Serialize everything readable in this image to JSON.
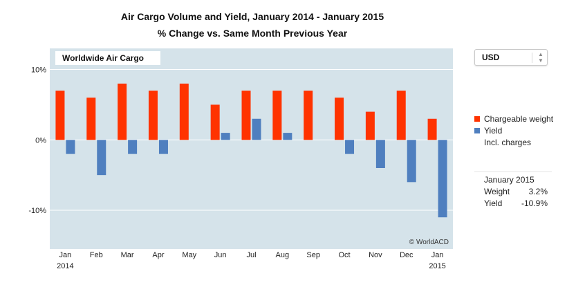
{
  "title": "Air Cargo Volume and Yield, January 2014 - January 2015",
  "subtitle": "%  Change vs. Same Month Previous Year",
  "currency_select": {
    "value": "USD"
  },
  "legend": {
    "items": [
      {
        "label": "Chargeable weight",
        "color": "#ff3300"
      },
      {
        "label": "Yield",
        "color": "#4f7fbf"
      }
    ],
    "note": "Incl. charges"
  },
  "info_box": {
    "period": "January 2015",
    "rows": [
      {
        "label": "Weight",
        "value": "3.2%"
      },
      {
        "label": "Yield",
        "value": "-10.9%"
      }
    ]
  },
  "chart_data": {
    "type": "bar",
    "title": "Air Cargo Volume and Yield, January 2014 - January 2015",
    "subtitle": "%  Change vs. Same Month Previous Year",
    "panel_label": "Worldwide Air Cargo",
    "credit": "© WorldACD",
    "categories": [
      "Jan",
      "Feb",
      "Mar",
      "Apr",
      "May",
      "Jun",
      "Jul",
      "Aug",
      "Sep",
      "Oct",
      "Nov",
      "Dec",
      "Jan"
    ],
    "category_sublabels": [
      "2014",
      "",
      "",
      "",
      "",
      "",
      "",
      "",
      "",
      "",
      "",
      "",
      "2015"
    ],
    "series": [
      {
        "name": "Chargeable weight",
        "color": "#ff3300",
        "values": [
          7,
          6,
          8,
          7,
          8,
          5,
          7,
          7,
          7,
          6,
          4,
          7,
          3
        ]
      },
      {
        "name": "Yield",
        "color": "#4f7fbf",
        "values": [
          -2,
          -5,
          -2,
          -2,
          null,
          1,
          3,
          1,
          null,
          -2,
          -4,
          -6,
          -11
        ]
      }
    ],
    "ylim": [
      -15.5,
      13
    ],
    "yticks": [
      10,
      0,
      -10
    ],
    "ytick_labels": [
      "10%",
      "0%",
      "-10%"
    ],
    "grid": true,
    "background": "#d5e3ea",
    "legend_position": "right"
  }
}
